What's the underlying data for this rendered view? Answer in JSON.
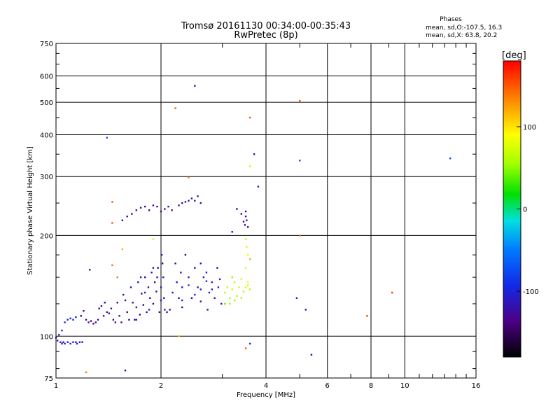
{
  "header": {
    "title_line1": "Tromsø 20161130 00:34:00-00:35:43",
    "title_line2": "RwPretec (8p)",
    "stats_title": "Phases",
    "stats_o": "mean, sd,O:-107.5, 16.3",
    "stats_x": "mean, sd,X:  63.8, 20.2"
  },
  "chart_data": {
    "type": "scatter",
    "title": "Tromsø 20161130 00:34:00-00:35:43",
    "subtitle": "RwPretec (8p)",
    "xlabel": "Frequency [MHz]",
    "ylabel": "Stationary phase Virtual Height [km]",
    "xscale": "log",
    "yscale": "log",
    "xlim": [
      1,
      16
    ],
    "ylim": [
      75,
      750
    ],
    "xticks": [
      1,
      2,
      4,
      6,
      8,
      10,
      16
    ],
    "xtick_labels": [
      "1",
      "2",
      "4",
      "6",
      "8",
      "10",
      "16"
    ],
    "yticks": [
      75,
      100,
      200,
      300,
      400,
      500,
      600,
      750
    ],
    "ytick_labels": [
      "75",
      "100",
      "200",
      "300",
      "400",
      "500",
      "600",
      "750"
    ],
    "grid": true,
    "colorbar": {
      "label": "[deg]",
      "range": [
        -180,
        180
      ],
      "ticks": [
        -100,
        0,
        100
      ],
      "tick_labels": [
        "-100",
        "0",
        "100"
      ]
    },
    "points": [
      [
        1.0,
        99,
        -115
      ],
      [
        1.01,
        97,
        -112
      ],
      [
        1.03,
        96,
        -105
      ],
      [
        1.04,
        95,
        -108
      ],
      [
        1.05,
        96,
        -110
      ],
      [
        1.06,
        95,
        -106
      ],
      [
        1.08,
        96,
        -104
      ],
      [
        1.1,
        95,
        -108
      ],
      [
        1.12,
        96,
        -102
      ],
      [
        1.14,
        96,
        -110
      ],
      [
        1.15,
        95,
        -106
      ],
      [
        1.17,
        96,
        -104
      ],
      [
        1.19,
        96,
        -108
      ],
      [
        1.02,
        101,
        -104
      ],
      [
        1.04,
        104,
        -100
      ],
      [
        1.06,
        110,
        -98
      ],
      [
        1.08,
        112,
        -102
      ],
      [
        1.1,
        113,
        -100
      ],
      [
        1.12,
        112,
        -95
      ],
      [
        1.14,
        114,
        -104
      ],
      [
        1.18,
        115,
        -130
      ],
      [
        1.2,
        119,
        -125
      ],
      [
        1.22,
        112,
        -135
      ],
      [
        1.24,
        110,
        -128
      ],
      [
        1.26,
        111,
        -130
      ],
      [
        1.28,
        109,
        -126
      ],
      [
        1.3,
        110,
        -132
      ],
      [
        1.32,
        112,
        -130
      ],
      [
        1.33,
        121,
        -128
      ],
      [
        1.35,
        123,
        -132
      ],
      [
        1.37,
        115,
        -126
      ],
      [
        1.38,
        126,
        -134
      ],
      [
        1.4,
        118,
        -128
      ],
      [
        1.42,
        117,
        -130
      ],
      [
        1.44,
        121,
        -126
      ],
      [
        1.46,
        112,
        -135
      ],
      [
        1.48,
        110,
        -128
      ],
      [
        1.5,
        126,
        -130
      ],
      [
        1.52,
        115,
        -124
      ],
      [
        1.54,
        110,
        -132
      ],
      [
        1.56,
        133,
        -130
      ],
      [
        1.58,
        128,
        -126
      ],
      [
        1.6,
        118,
        -134
      ],
      [
        1.62,
        112,
        -130
      ],
      [
        1.64,
        140,
        -128
      ],
      [
        1.66,
        126,
        -132
      ],
      [
        1.68,
        112,
        -130
      ],
      [
        1.7,
        122,
        -128
      ],
      [
        1.72,
        145,
        -126
      ],
      [
        1.74,
        116,
        -134
      ],
      [
        1.76,
        134,
        -130
      ],
      [
        1.78,
        124,
        -128
      ],
      [
        1.8,
        150,
        -132
      ],
      [
        1.82,
        118,
        -126
      ],
      [
        1.84,
        140,
        -130
      ],
      [
        1.86,
        130,
        -124
      ],
      [
        1.88,
        155,
        -132
      ],
      [
        1.9,
        125,
        -130
      ],
      [
        1.92,
        145,
        -128
      ],
      [
        1.94,
        136,
        -126
      ],
      [
        1.96,
        160,
        -130
      ],
      [
        1.98,
        118,
        -128
      ],
      [
        2.0,
        140,
        -120
      ],
      [
        2.01,
        175,
        -126
      ],
      [
        2.02,
        165,
        -128
      ],
      [
        2.03,
        150,
        -132
      ],
      [
        2.04,
        130,
        -118
      ],
      [
        2.05,
        120,
        -126
      ],
      [
        2.0,
        128,
        -112
      ],
      [
        1.95,
        150,
        -110
      ],
      [
        1.9,
        160,
        -115
      ],
      [
        1.85,
        120,
        -100
      ],
      [
        1.8,
        135,
        -108
      ],
      [
        1.75,
        150,
        -120
      ],
      [
        1.7,
        112,
        -105
      ],
      [
        2.08,
        118,
        -124
      ],
      [
        2.12,
        120,
        -128
      ],
      [
        2.16,
        135,
        -126
      ],
      [
        2.2,
        165,
        -130
      ],
      [
        2.22,
        145,
        -128
      ],
      [
        2.25,
        130,
        -126
      ],
      [
        2.28,
        155,
        -132
      ],
      [
        2.3,
        122,
        -128
      ],
      [
        2.35,
        175,
        -130
      ],
      [
        2.4,
        150,
        -126
      ],
      [
        2.45,
        130,
        -132
      ],
      [
        2.5,
        160,
        -128
      ],
      [
        2.55,
        140,
        -130
      ],
      [
        2.6,
        127,
        -126
      ],
      [
        2.65,
        150,
        -110
      ],
      [
        2.7,
        155,
        -105
      ],
      [
        2.72,
        120,
        -126
      ],
      [
        2.75,
        135,
        -112
      ],
      [
        2.8,
        145,
        -108
      ],
      [
        2.85,
        130,
        -124
      ],
      [
        2.9,
        160,
        -115
      ],
      [
        2.92,
        140,
        -104
      ],
      [
        2.95,
        148,
        -100
      ],
      [
        2.98,
        125,
        -122
      ],
      [
        2.3,
        128,
        -100
      ],
      [
        2.4,
        142,
        -95
      ],
      [
        2.5,
        133,
        -98
      ],
      [
        2.6,
        138,
        -102
      ],
      [
        2.7,
        146,
        -96
      ],
      [
        2.8,
        138,
        -98
      ],
      [
        2.3,
        140,
        -110
      ],
      [
        2.6,
        165,
        -125
      ],
      [
        3.05,
        135,
        60
      ],
      [
        3.1,
        140,
        65
      ],
      [
        3.15,
        130,
        55
      ],
      [
        3.2,
        138,
        70
      ],
      [
        3.25,
        145,
        62
      ],
      [
        3.3,
        132,
        58
      ],
      [
        3.35,
        140,
        68
      ],
      [
        3.4,
        148,
        75
      ],
      [
        3.45,
        136,
        60
      ],
      [
        3.5,
        140,
        72
      ],
      [
        3.55,
        142,
        66
      ],
      [
        3.6,
        138,
        64
      ],
      [
        3.15,
        125,
        50
      ],
      [
        3.25,
        128,
        54
      ],
      [
        3.4,
        130,
        58
      ],
      [
        3.05,
        125,
        40
      ],
      [
        3.2,
        150,
        48
      ],
      [
        3.5,
        160,
        75
      ],
      [
        3.55,
        175,
        80
      ],
      [
        3.52,
        185,
        70
      ],
      [
        3.5,
        195,
        65
      ],
      [
        3.55,
        145,
        85
      ],
      [
        1.55,
        222,
        -130
      ],
      [
        1.6,
        228,
        -128
      ],
      [
        1.65,
        232,
        -132
      ],
      [
        1.7,
        238,
        -130
      ],
      [
        1.75,
        242,
        -126
      ],
      [
        1.8,
        244,
        -130
      ],
      [
        1.85,
        238,
        -128
      ],
      [
        1.9,
        246,
        -132
      ],
      [
        1.95,
        244,
        -130
      ],
      [
        2.0,
        236,
        -128
      ],
      [
        2.05,
        240,
        -130
      ],
      [
        2.1,
        244,
        -126
      ],
      [
        2.15,
        238,
        -130
      ],
      [
        2.25,
        246,
        -120
      ],
      [
        2.3,
        250,
        -118
      ],
      [
        2.35,
        252,
        -122
      ],
      [
        2.4,
        254,
        -115
      ],
      [
        2.45,
        258,
        -120
      ],
      [
        2.5,
        254,
        -118
      ],
      [
        2.55,
        262,
        -122
      ],
      [
        2.6,
        250,
        -120
      ],
      [
        3.2,
        205,
        -125
      ],
      [
        3.3,
        240,
        -130
      ],
      [
        3.4,
        232,
        -128
      ],
      [
        3.45,
        220,
        -126
      ],
      [
        3.5,
        228,
        -132
      ],
      [
        3.48,
        215,
        -130
      ],
      [
        3.52,
        222,
        -128
      ],
      [
        3.55,
        212,
        -126
      ],
      [
        3.5,
        236,
        -130
      ],
      [
        1.4,
        392,
        -70
      ],
      [
        2.2,
        480,
        150
      ],
      [
        2.5,
        560,
        -120
      ],
      [
        2.4,
        298,
        140
      ],
      [
        3.6,
        450,
        150
      ],
      [
        3.7,
        350,
        -130
      ],
      [
        3.6,
        322,
        100
      ],
      [
        3.8,
        280,
        -120
      ],
      [
        5.0,
        505,
        150
      ],
      [
        5.0,
        335,
        -80
      ],
      [
        5.0,
        200,
        145
      ],
      [
        4.9,
        130,
        -110
      ],
      [
        5.2,
        120,
        -115
      ],
      [
        7.8,
        115,
        160
      ],
      [
        9.2,
        135,
        160
      ],
      [
        13.5,
        340,
        -80
      ],
      [
        5.4,
        88,
        -135
      ],
      [
        3.5,
        92,
        150
      ],
      [
        3.6,
        95,
        -100
      ],
      [
        1.45,
        252,
        150
      ],
      [
        1.45,
        218,
        150
      ],
      [
        1.55,
        182,
        120
      ],
      [
        1.25,
        158,
        -130
      ],
      [
        1.9,
        195,
        100
      ],
      [
        1.5,
        150,
        140
      ],
      [
        1.45,
        163,
        140
      ],
      [
        1.22,
        78,
        140
      ],
      [
        1.58,
        79,
        -140
      ],
      [
        2.25,
        100,
        120
      ],
      [
        3.6,
        170,
        120
      ]
    ]
  }
}
